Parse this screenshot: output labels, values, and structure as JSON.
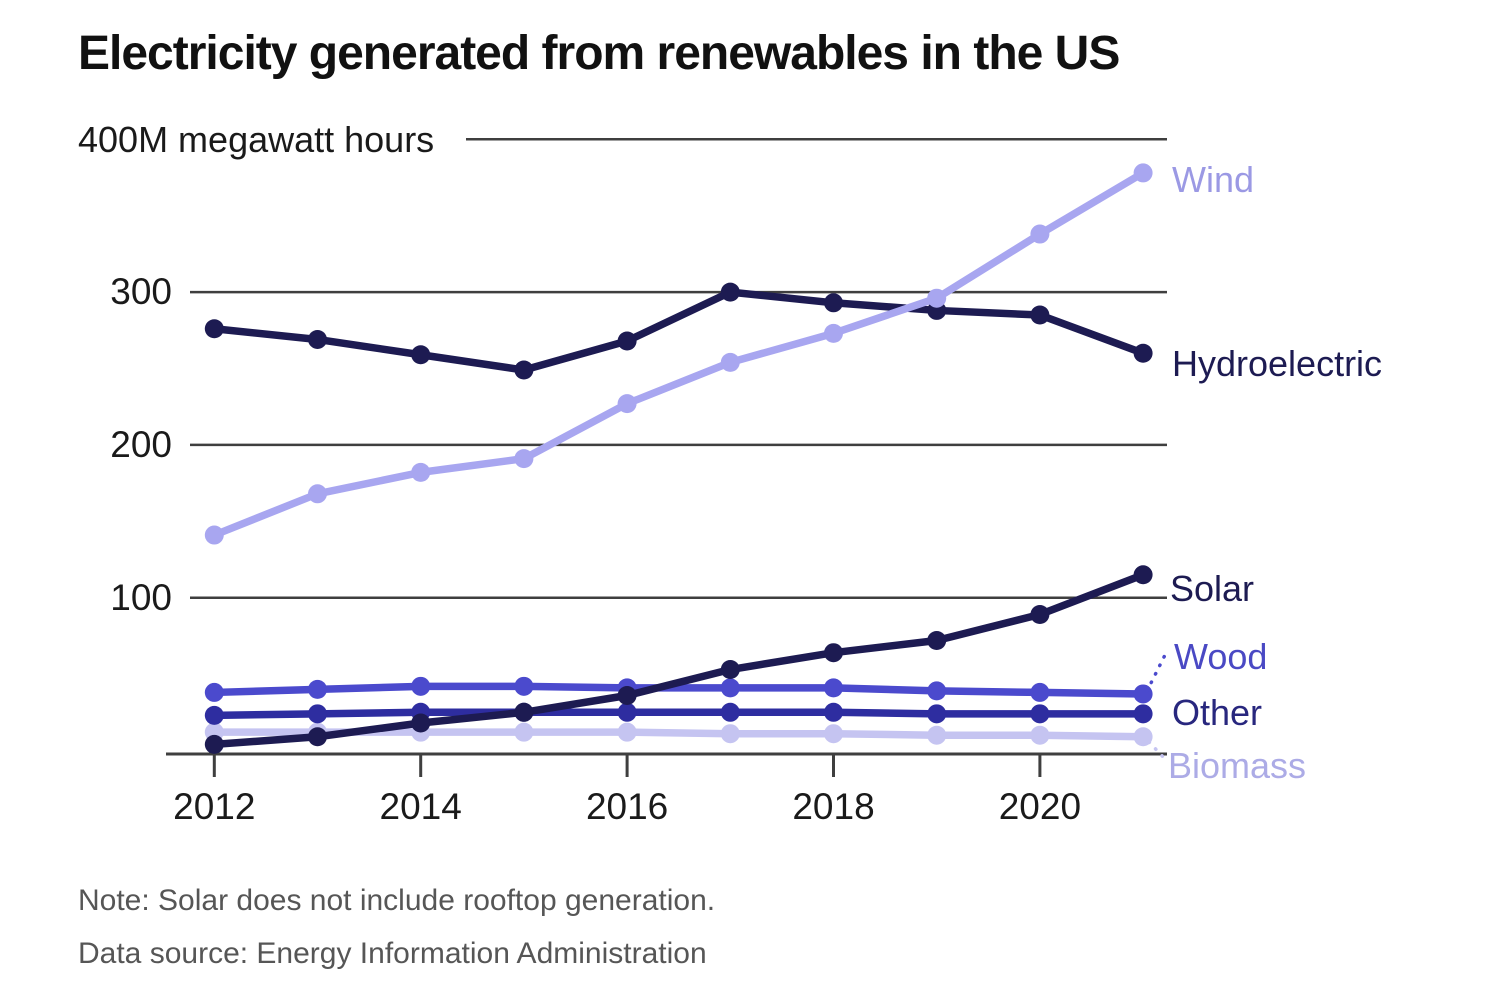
{
  "title": "Electricity generated from renewables in the US",
  "y_axis_unit_label": "400M megawatt hours",
  "notes": {
    "note": "Note: Solar does not include rooftop generation.",
    "source": "Data source: Energy Information Administration"
  },
  "colors": {
    "grid": "#3f3f3f",
    "axis": "#3f3f3f",
    "title_text": "#111111",
    "tick_text": "#1a1a1a",
    "note_text": "#565656"
  },
  "chart_data": {
    "type": "line",
    "title": "Electricity generated from renewables in the US",
    "ylabel": "megawatt hours (millions)",
    "xlabel": "",
    "x": [
      2012,
      2013,
      2014,
      2015,
      2016,
      2017,
      2018,
      2019,
      2020,
      2021
    ],
    "x_tick_labels": [
      "2012",
      "2014",
      "2016",
      "2018",
      "2020"
    ],
    "x_tick_years": [
      2012,
      2014,
      2016,
      2018,
      2020
    ],
    "y_ticks": [
      100,
      200,
      300,
      400
    ],
    "y_tick_labels": [
      "100",
      "200",
      "300"
    ],
    "ylim": [
      0,
      400
    ],
    "grid": true,
    "legend_position": "right-inline",
    "series": [
      {
        "name": "Wind",
        "color": "#a8a6f0",
        "label_color": "#9b99e4",
        "values": [
          141,
          168,
          182,
          191,
          227,
          254,
          273,
          296,
          338,
          378
        ]
      },
      {
        "name": "Hydroelectric",
        "color": "#1d1b52",
        "label_color": "#1d1b52",
        "values": [
          276,
          269,
          259,
          249,
          268,
          300,
          293,
          288,
          285,
          260
        ]
      },
      {
        "name": "Solar",
        "color": "#1d1b52",
        "label_color": "#1d1b52",
        "values": [
          4,
          9,
          18,
          25,
          36,
          53,
          64,
          72,
          89,
          115
        ]
      },
      {
        "name": "Wood",
        "color": "#4b4acd",
        "label_color": "#4a49c4",
        "values": [
          38,
          40,
          42,
          42,
          41,
          41,
          41,
          39,
          38,
          37
        ],
        "label_leader": "dotted"
      },
      {
        "name": "Other",
        "color": "#2e2da0",
        "label_color": "#28277e",
        "values": [
          23,
          24,
          25,
          25,
          25,
          25,
          25,
          24,
          24,
          24
        ]
      },
      {
        "name": "Biomass",
        "color": "#c5c4f1",
        "label_color": "#acabe6",
        "values": [
          12,
          12,
          12,
          12,
          12,
          11,
          11,
          10,
          10,
          9
        ],
        "label_leader": "dotted"
      }
    ]
  }
}
